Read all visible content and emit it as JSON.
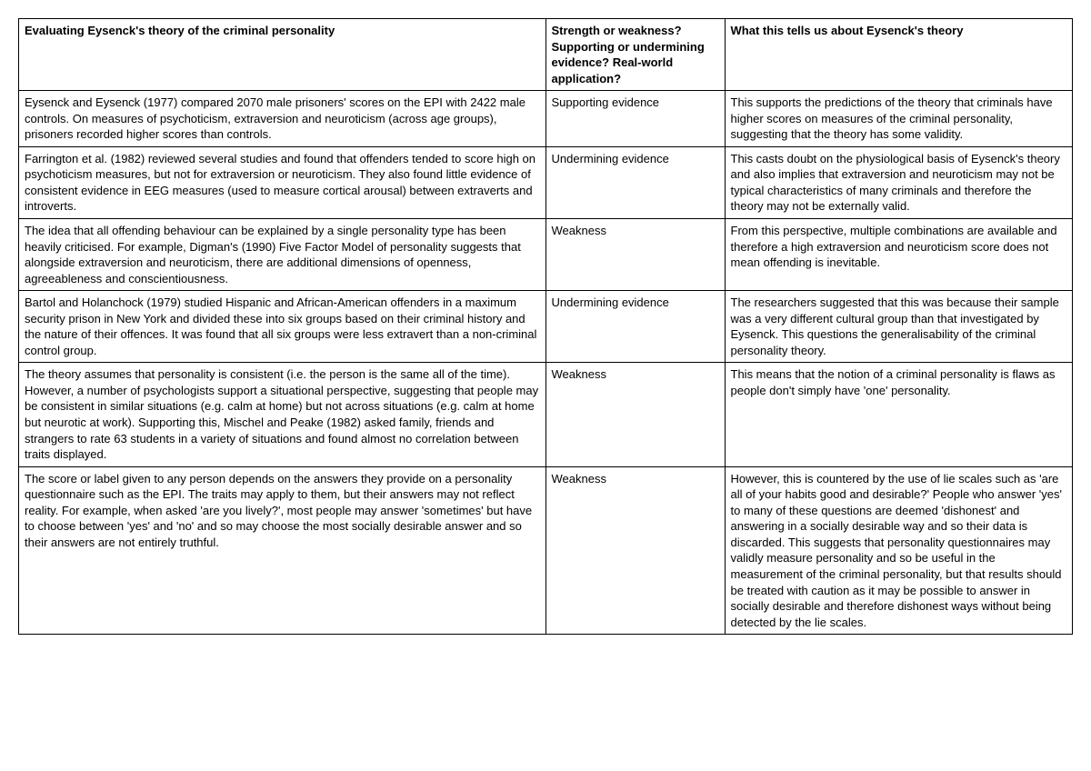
{
  "table": {
    "columns": [
      "Evaluating Eysenck's theory of the criminal personality",
      "Strength or weakness? Supporting or undermining evidence? Real-world application?",
      "What this tells us about Eysenck's theory"
    ],
    "rows": [
      {
        "c1": "Eysenck and Eysenck (1977) compared 2070 male prisoners' scores on the EPI with 2422 male controls. On measures of psychoticism, extraversion and neuroticism (across age groups), prisoners recorded higher scores than controls.",
        "c2": "Supporting evidence",
        "c3": "This supports the predictions of the theory that criminals have higher scores on measures of the criminal personality, suggesting that the theory has some validity."
      },
      {
        "c1": "Farrington et al. (1982) reviewed several studies and found that offenders tended to score high on psychoticism measures, but not for extraversion or neuroticism. They also found little evidence of consistent evidence in EEG measures (used to measure cortical arousal) between extraverts and introverts.",
        "c2": "Undermining evidence",
        "c3": "This casts doubt on the physiological basis of Eysenck's theory and also implies that extraversion and neuroticism may not be typical characteristics of many criminals and therefore the theory may not be externally valid."
      },
      {
        "c1": "The idea that all offending behaviour can be explained by a single personality type has been heavily criticised. For example, Digman's (1990) Five Factor Model of personality suggests that alongside extraversion and neuroticism, there are additional dimensions of openness, agreeableness and conscientiousness.",
        "c2": "Weakness",
        "c3": "From this perspective, multiple combinations are available and therefore a high extraversion and neuroticism score does not mean offending is inevitable."
      },
      {
        "c1": "Bartol and Holanchock (1979) studied Hispanic and African-American offenders in a maximum security prison in New York and divided these into six groups based on their criminal history and the nature of their offences. It was found that all six groups were less extravert than a non-criminal control group.",
        "c2": "Undermining evidence",
        "c3": "The researchers suggested that this was because their sample was a very different cultural group than that investigated by Eysenck. This questions the generalisability of the criminal personality theory."
      },
      {
        "c1": "The theory assumes that personality is consistent (i.e. the person is the same all of the time). However, a number of psychologists support a situational perspective, suggesting that people may be consistent in similar situations (e.g. calm at home) but not across situations (e.g. calm at home but neurotic at work). Supporting this, Mischel and Peake (1982) asked family, friends and strangers to rate 63 students in a variety of situations and found almost no correlation between traits displayed.",
        "c2": "Weakness",
        "c3": "This means that the notion of a criminal personality is flaws as people don't simply have 'one' personality."
      },
      {
        "c1": "The score or label given to any person depends on the answers they provide on a personality questionnaire such as the EPI. The traits may apply to them, but their answers may not reflect reality. For example, when asked 'are you lively?', most people may answer 'sometimes' but have to choose between 'yes' and 'no' and so may choose the most socially desirable answer and so their answers are not entirely truthful.",
        "c2": "Weakness",
        "c3": "However, this is countered by the use of lie scales such as 'are all of your habits good and desirable?' People who answer 'yes' to many of these questions are deemed 'dishonest' and answering in a socially desirable way and so their data is discarded. This suggests that personality questionnaires may validly measure personality and so be useful in the measurement of the criminal personality, but that results should be treated with caution as it may be possible to answer in socially desirable and therefore dishonest ways without being detected by the lie scales."
      }
    ]
  }
}
